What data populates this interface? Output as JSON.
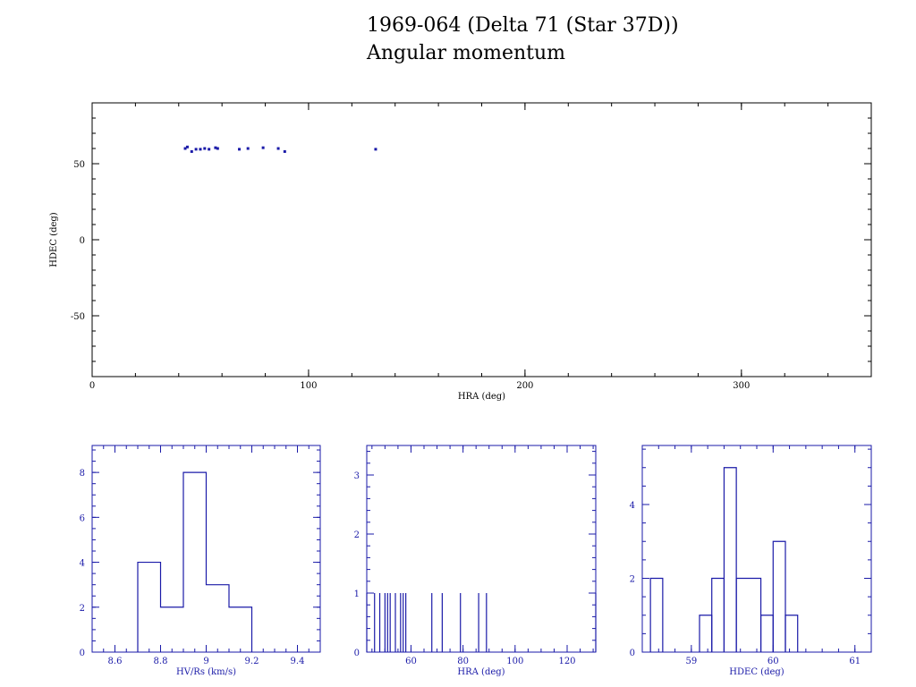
{
  "header": {
    "title": "1969-064 (Delta 71 (Star 37D))",
    "subtitle": "Angular momentum"
  },
  "colors": {
    "axis": "#000000",
    "data": "#1a1aa8"
  },
  "chart_data": [
    {
      "type": "scatter",
      "xlabel": "HRA (deg)",
      "ylabel": "HDEC (deg)",
      "xlim": [
        0,
        360
      ],
      "ylim": [
        -90,
        90
      ],
      "xticks": [
        0,
        100,
        200,
        300
      ],
      "yticks": [
        -50,
        0,
        50
      ],
      "points": [
        [
          43,
          60
        ],
        [
          44,
          61
        ],
        [
          46,
          58
        ],
        [
          48,
          59.5
        ],
        [
          50,
          59.5
        ],
        [
          52,
          60
        ],
        [
          54,
          59.5
        ],
        [
          57,
          60.5
        ],
        [
          58,
          60
        ],
        [
          68,
          59.5
        ],
        [
          72,
          60
        ],
        [
          79,
          60.5
        ],
        [
          86,
          60
        ],
        [
          89,
          58
        ],
        [
          131,
          59.5
        ]
      ]
    },
    {
      "type": "histogram",
      "xlabel": "HV/Rs (km/s)",
      "ylabel": "",
      "xlim": [
        8.5,
        9.5
      ],
      "ylim": [
        0,
        9.2
      ],
      "xticks": [
        8.6,
        8.8,
        9,
        9.2,
        9.4
      ],
      "xtick_labels": [
        "8.6",
        "8.8",
        "9",
        "9.2",
        "9.4"
      ],
      "yticks": [
        0,
        2,
        4,
        6,
        8
      ],
      "bin_edges": [
        8.7,
        8.8,
        8.9,
        9.0,
        9.1,
        9.2
      ],
      "counts": [
        4,
        2,
        8,
        3,
        2
      ]
    },
    {
      "type": "histogram",
      "xlabel": "HRA (deg)",
      "ylabel": "",
      "xlim": [
        43,
        131
      ],
      "ylim": [
        0,
        3.5
      ],
      "xticks": [
        60,
        80,
        100,
        120
      ],
      "xtick_labels": [
        "60",
        "80",
        "100",
        "120"
      ],
      "yticks": [
        0,
        1,
        2,
        3
      ],
      "spikes": [
        43,
        46,
        48,
        50,
        51,
        52,
        54,
        56,
        57,
        58,
        68,
        72,
        79,
        86,
        89,
        131
      ],
      "counts": 1
    },
    {
      "type": "histogram",
      "xlabel": "HDEC (deg)",
      "ylabel": "",
      "xlim": [
        58.4,
        61.2
      ],
      "ylim": [
        0,
        5.6
      ],
      "xticks": [
        59,
        60,
        61
      ],
      "xtick_labels": [
        "59",
        "60",
        "61"
      ],
      "yticks": [
        0,
        2,
        4
      ],
      "bins": [
        [
          58.5,
          58.65,
          2
        ],
        [
          59.1,
          59.25,
          1
        ],
        [
          59.25,
          59.4,
          2
        ],
        [
          59.4,
          59.55,
          5
        ],
        [
          59.55,
          59.85,
          2
        ],
        [
          59.85,
          60.0,
          1
        ],
        [
          60.0,
          60.15,
          3
        ],
        [
          60.15,
          60.3,
          1
        ]
      ]
    }
  ]
}
